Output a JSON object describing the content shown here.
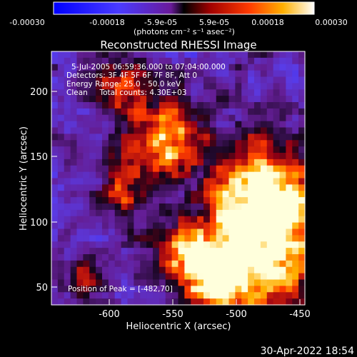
{
  "colorbar": {
    "tick_labels": [
      "-0.00030",
      "-0.00018",
      "-5.9e-05",
      "5.9e-05",
      "0.00018",
      "0.00030"
    ],
    "units_label": "(photons cm⁻² s⁻¹ asec⁻²)",
    "range": [
      -0.0003,
      0.0003
    ]
  },
  "title": "Reconstructed RHESSI Image",
  "annotations": {
    "line1": "5-Jul-2005 06:59:36.000 to 07:04:00.000",
    "line2": "Detectors: 3F 4F 5F 6F 7F 8F, Att 0",
    "line3": "Energy Range: 25.0 - 50.0 keV",
    "line4": "Clean     Total counts: 4.30E+03",
    "peak": "Position of Peak = [-482,70]"
  },
  "axes": {
    "xlabel": "Heliocentric X (arcsec)",
    "ylabel": "Heliocentric Y (arcsec)",
    "x_ticks": [
      "-600",
      "-550",
      "-500",
      "-450"
    ],
    "x_tick_values": [
      -600,
      -550,
      -500,
      -450
    ],
    "y_ticks": [
      "50",
      "100",
      "150",
      "200"
    ],
    "y_tick_values": [
      50,
      100,
      150,
      200
    ],
    "xlim": [
      -645,
      -445
    ],
    "ylim": [
      37,
      227
    ]
  },
  "timestamp": "30-Apr-2022 18:54",
  "colors": {
    "background": "#000000",
    "low": "#2c2cff",
    "mid": "#6a1a9a",
    "high": "#ffffff"
  }
}
